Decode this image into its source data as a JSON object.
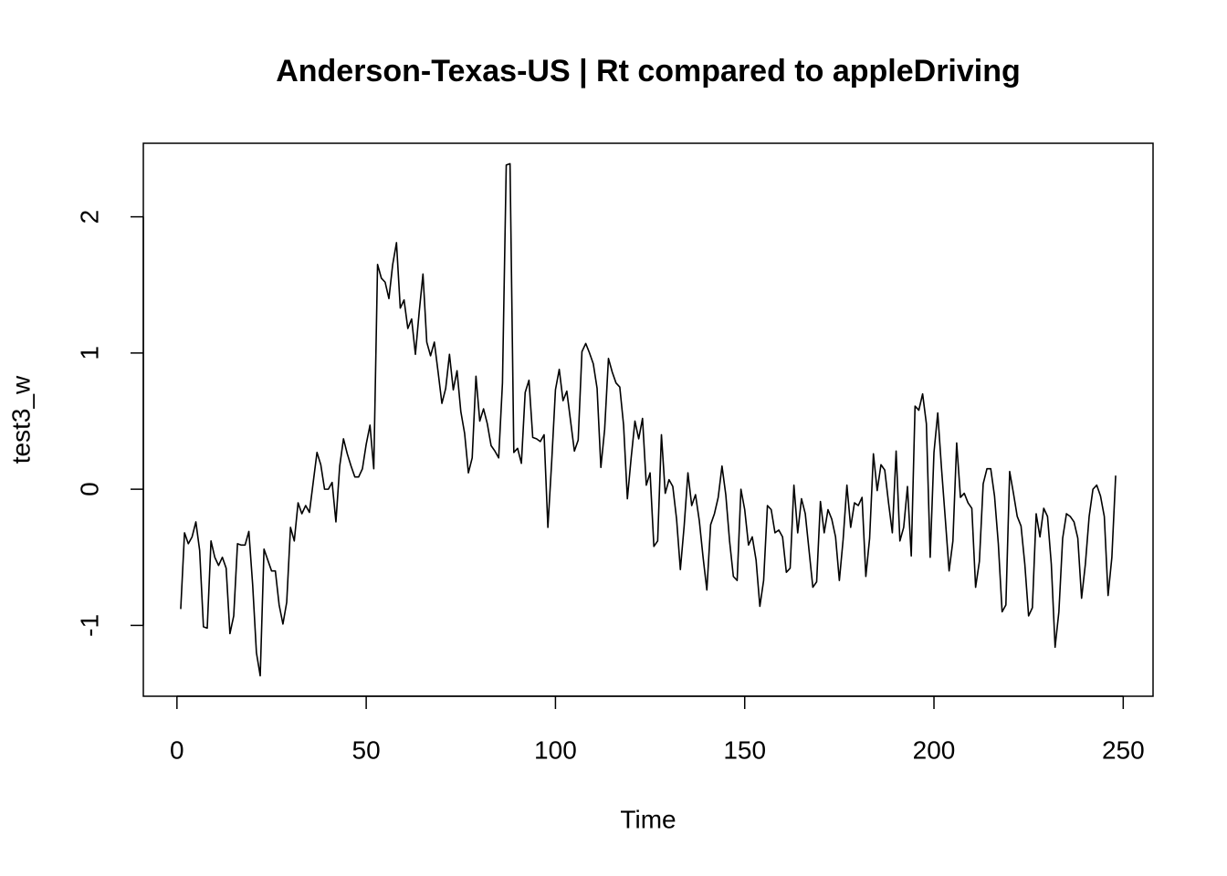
{
  "chart_data": {
    "type": "line",
    "title": "Anderson-Texas-US | Rt compared to appleDriving",
    "xlabel": "Time",
    "ylabel": "test3_w",
    "color": "#000000",
    "xlim": [
      -8.88,
      257.88
    ],
    "ylim": [
      -1.52,
      2.54
    ],
    "xticks": [
      0,
      50,
      100,
      150,
      200,
      250
    ],
    "yticks": [
      -1,
      0,
      1,
      2
    ],
    "x": [
      1,
      2,
      3,
      4,
      5,
      6,
      7,
      8,
      9,
      10,
      11,
      12,
      13,
      14,
      15,
      16,
      17,
      18,
      19,
      20,
      21,
      22,
      23,
      24,
      25,
      26,
      27,
      28,
      29,
      30,
      31,
      32,
      33,
      34,
      35,
      36,
      37,
      38,
      39,
      40,
      41,
      42,
      43,
      44,
      45,
      46,
      47,
      48,
      49,
      50,
      51,
      52,
      53,
      54,
      55,
      56,
      57,
      58,
      59,
      60,
      61,
      62,
      63,
      64,
      65,
      66,
      67,
      68,
      69,
      70,
      71,
      72,
      73,
      74,
      75,
      76,
      77,
      78,
      79,
      80,
      81,
      82,
      83,
      84,
      85,
      86,
      87,
      88,
      89,
      90,
      91,
      92,
      93,
      94,
      95,
      96,
      97,
      98,
      99,
      100,
      101,
      102,
      103,
      104,
      105,
      106,
      107,
      108,
      109,
      110,
      111,
      112,
      113,
      114,
      115,
      116,
      117,
      118,
      119,
      120,
      121,
      122,
      123,
      124,
      125,
      126,
      127,
      128,
      129,
      130,
      131,
      132,
      133,
      134,
      135,
      136,
      137,
      138,
      139,
      140,
      141,
      142,
      143,
      144,
      145,
      146,
      147,
      148,
      149,
      150,
      151,
      152,
      153,
      154,
      155,
      156,
      157,
      158,
      159,
      160,
      161,
      162,
      163,
      164,
      165,
      166,
      167,
      168,
      169,
      170,
      171,
      172,
      173,
      174,
      175,
      176,
      177,
      178,
      179,
      180,
      181,
      182,
      183,
      184,
      185,
      186,
      187,
      188,
      189,
      190,
      191,
      192,
      193,
      194,
      195,
      196,
      197,
      198,
      199,
      200,
      201,
      202,
      203,
      204,
      205,
      206,
      207,
      208,
      209,
      210,
      211,
      212,
      213,
      214,
      215,
      216,
      217,
      218,
      219,
      220,
      221,
      222,
      223,
      224,
      225,
      226,
      227,
      228,
      229,
      230,
      231,
      232,
      233,
      234,
      235,
      236,
      237,
      238,
      239,
      240,
      241,
      242,
      243,
      244,
      245,
      246,
      247,
      248
    ],
    "values": [
      -0.88,
      -0.32,
      -0.4,
      -0.35,
      -0.24,
      -0.45,
      -1.01,
      -1.02,
      -0.38,
      -0.5,
      -0.56,
      -0.5,
      -0.58,
      -1.06,
      -0.93,
      -0.4,
      -0.41,
      -0.41,
      -0.31,
      -0.7,
      -1.2,
      -1.37,
      -0.44,
      -0.52,
      -0.6,
      -0.6,
      -0.85,
      -0.99,
      -0.83,
      -0.28,
      -0.38,
      -0.1,
      -0.18,
      -0.12,
      -0.17,
      0.05,
      0.27,
      0.18,
      0.0,
      0.0,
      0.05,
      -0.24,
      0.17,
      0.37,
      0.26,
      0.17,
      0.09,
      0.09,
      0.15,
      0.33,
      0.47,
      0.15,
      1.65,
      1.55,
      1.52,
      1.4,
      1.65,
      1.81,
      1.33,
      1.39,
      1.18,
      1.25,
      0.99,
      1.3,
      1.58,
      1.08,
      0.98,
      1.08,
      0.86,
      0.63,
      0.74,
      0.99,
      0.73,
      0.87,
      0.57,
      0.41,
      0.12,
      0.23,
      0.83,
      0.5,
      0.59,
      0.48,
      0.32,
      0.28,
      0.23,
      0.78,
      2.38,
      2.39,
      0.27,
      0.3,
      0.19,
      0.71,
      0.8,
      0.38,
      0.37,
      0.35,
      0.4,
      -0.28,
      0.2,
      0.73,
      0.88,
      0.65,
      0.72,
      0.5,
      0.28,
      0.36,
      1.01,
      1.07,
      1.0,
      0.92,
      0.74,
      0.16,
      0.44,
      0.96,
      0.86,
      0.78,
      0.75,
      0.47,
      -0.07,
      0.23,
      0.5,
      0.37,
      0.52,
      0.03,
      0.12,
      -0.42,
      -0.38,
      0.4,
      -0.03,
      0.07,
      0.02,
      -0.22,
      -0.59,
      -0.27,
      0.12,
      -0.12,
      -0.04,
      -0.23,
      -0.5,
      -0.74,
      -0.26,
      -0.18,
      -0.06,
      0.17,
      -0.04,
      -0.38,
      -0.64,
      -0.67,
      0.0,
      -0.15,
      -0.41,
      -0.35,
      -0.52,
      -0.86,
      -0.67,
      -0.12,
      -0.15,
      -0.32,
      -0.3,
      -0.35,
      -0.61,
      -0.58,
      0.03,
      -0.32,
      -0.07,
      -0.18,
      -0.45,
      -0.72,
      -0.68,
      -0.09,
      -0.32,
      -0.15,
      -0.22,
      -0.35,
      -0.67,
      -0.37,
      0.03,
      -0.28,
      -0.1,
      -0.12,
      -0.06,
      -0.64,
      -0.36,
      0.26,
      -0.01,
      0.18,
      0.14,
      -0.1,
      -0.32,
      0.28,
      -0.38,
      -0.28,
      0.02,
      -0.49,
      0.61,
      0.58,
      0.7,
      0.48,
      -0.5,
      0.27,
      0.56,
      0.15,
      -0.22,
      -0.6,
      -0.38,
      0.34,
      -0.06,
      -0.03,
      -0.1,
      -0.14,
      -0.72,
      -0.53,
      0.04,
      0.15,
      0.15,
      -0.05,
      -0.4,
      -0.9,
      -0.85,
      0.13,
      -0.03,
      -0.2,
      -0.27,
      -0.55,
      -0.93,
      -0.87,
      -0.18,
      -0.35,
      -0.14,
      -0.2,
      -0.55,
      -1.16,
      -0.9,
      -0.36,
      -0.18,
      -0.2,
      -0.24,
      -0.36,
      -0.8,
      -0.55,
      -0.2,
      0.0,
      0.03,
      -0.05,
      -0.2,
      -0.78,
      -0.5,
      0.1
    ]
  }
}
